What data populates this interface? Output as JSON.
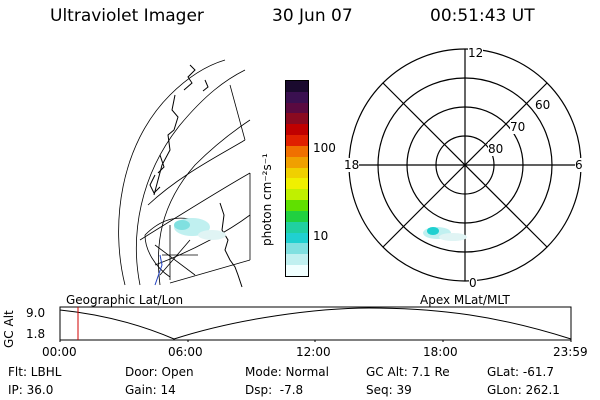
{
  "header": {
    "title": "Ultraviolet Imager",
    "date": "30 Jun 07",
    "time": "00:51:43 UT"
  },
  "colorbar": {
    "unit_label": "photon cm⁻²s⁻¹",
    "ticks": [
      "100",
      "10"
    ],
    "colors": [
      "#1a0a2e",
      "#3a1050",
      "#5a0a40",
      "#8a0a20",
      "#c00000",
      "#e02000",
      "#f07000",
      "#f0a000",
      "#f0d000",
      "#f0f000",
      "#c0f000",
      "#60e000",
      "#20d040",
      "#20d0a0",
      "#20d0d0",
      "#80e0e0",
      "#c0f0f0",
      "#f0ffff"
    ]
  },
  "polar": {
    "mlt_labels": {
      "top": "12",
      "left": "18",
      "right": "6",
      "bottom": "0"
    },
    "lat_labels": [
      "60",
      "70",
      "80"
    ]
  },
  "track": {
    "axis_title": "GC Alt",
    "y_ticks": [
      "9.0",
      "1.8"
    ],
    "left_label": "Geographic Lat/Lon",
    "right_label": "Apex MLat/MLT",
    "time_ticks": [
      "00:00",
      "06:00",
      "12:00",
      "18:00",
      "23:59"
    ],
    "marker_color": "#d00000"
  },
  "info": {
    "flt": "Flt: LBHL",
    "ip": "IP: 36.0",
    "door": "Door: Open",
    "gain": "Gain: 14",
    "mode": "Mode: Normal",
    "dsp": "Dsp:  -7.8",
    "gcalt": "GC Alt: 7.1 Re",
    "seq": "Seq: 39",
    "glat": "GLat: -61.7",
    "glon": "GLon: 262.1"
  }
}
